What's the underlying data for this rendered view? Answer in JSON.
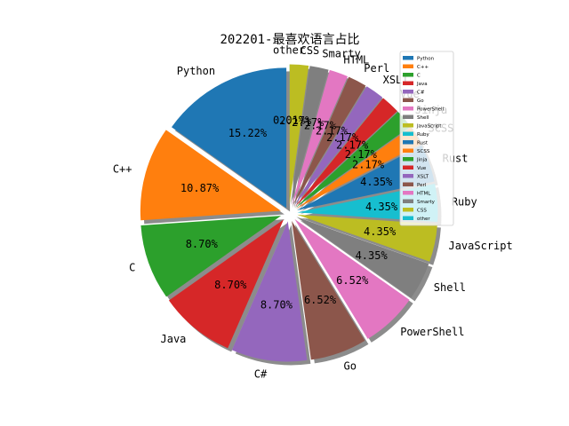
{
  "chart_data": {
    "type": "pie",
    "title": "202201-最喜欢语言占比",
    "legend_position": "upper right",
    "start_angle_deg": 90,
    "direction": "counterclockwise",
    "shadow": true,
    "exploded": true,
    "slices": [
      {
        "label": "Python",
        "value": 15.22,
        "pct_text": "15.22%",
        "color": "#1f77b4"
      },
      {
        "label": "C++",
        "value": 10.87,
        "pct_text": "10.87%",
        "color": "#ff7f0e"
      },
      {
        "label": "C",
        "value": 8.7,
        "pct_text": "8.70%",
        "color": "#2ca02c"
      },
      {
        "label": "Java",
        "value": 8.7,
        "pct_text": "8.70%",
        "color": "#d62728"
      },
      {
        "label": "C#",
        "value": 8.7,
        "pct_text": "8.70%",
        "color": "#9467bd"
      },
      {
        "label": "Go",
        "value": 6.52,
        "pct_text": "6.52%",
        "color": "#8c564b"
      },
      {
        "label": "PowerShell",
        "value": 6.52,
        "pct_text": "6.52%",
        "color": "#e377c2"
      },
      {
        "label": "Shell",
        "value": 4.35,
        "pct_text": "4.35%",
        "color": "#7f7f7f"
      },
      {
        "label": "JavaScript",
        "value": 4.35,
        "pct_text": "4.35%",
        "color": "#bcbd22"
      },
      {
        "label": "Ruby",
        "value": 4.35,
        "pct_text": "4.35%",
        "color": "#17becf"
      },
      {
        "label": "Rust",
        "value": 4.35,
        "pct_text": "4.35%",
        "color": "#1f77b4"
      },
      {
        "label": "SCSS",
        "value": 2.17,
        "pct_text": "2.17%",
        "color": "#ff7f0e"
      },
      {
        "label": "Jinja",
        "value": 2.17,
        "pct_text": "2.17%",
        "color": "#2ca02c"
      },
      {
        "label": "Vue",
        "value": 2.17,
        "pct_text": "2.17%",
        "color": "#d62728"
      },
      {
        "label": "XSLT",
        "value": 2.17,
        "pct_text": "2.17%",
        "color": "#9467bd"
      },
      {
        "label": "Perl",
        "value": 2.17,
        "pct_text": "2.17%",
        "color": "#8c564b"
      },
      {
        "label": "HTML",
        "value": 2.17,
        "pct_text": "2.17%",
        "color": "#e377c2"
      },
      {
        "label": "Smarty",
        "value": 2.17,
        "pct_text": "2.17%",
        "color": "#7f7f7f"
      },
      {
        "label": "CSS",
        "value": 2.17,
        "pct_text": "2.17%",
        "color": "#bcbd22"
      },
      {
        "label": "other",
        "value": 0.01,
        "pct_text": "0.01%",
        "color": "#17becf"
      }
    ]
  }
}
